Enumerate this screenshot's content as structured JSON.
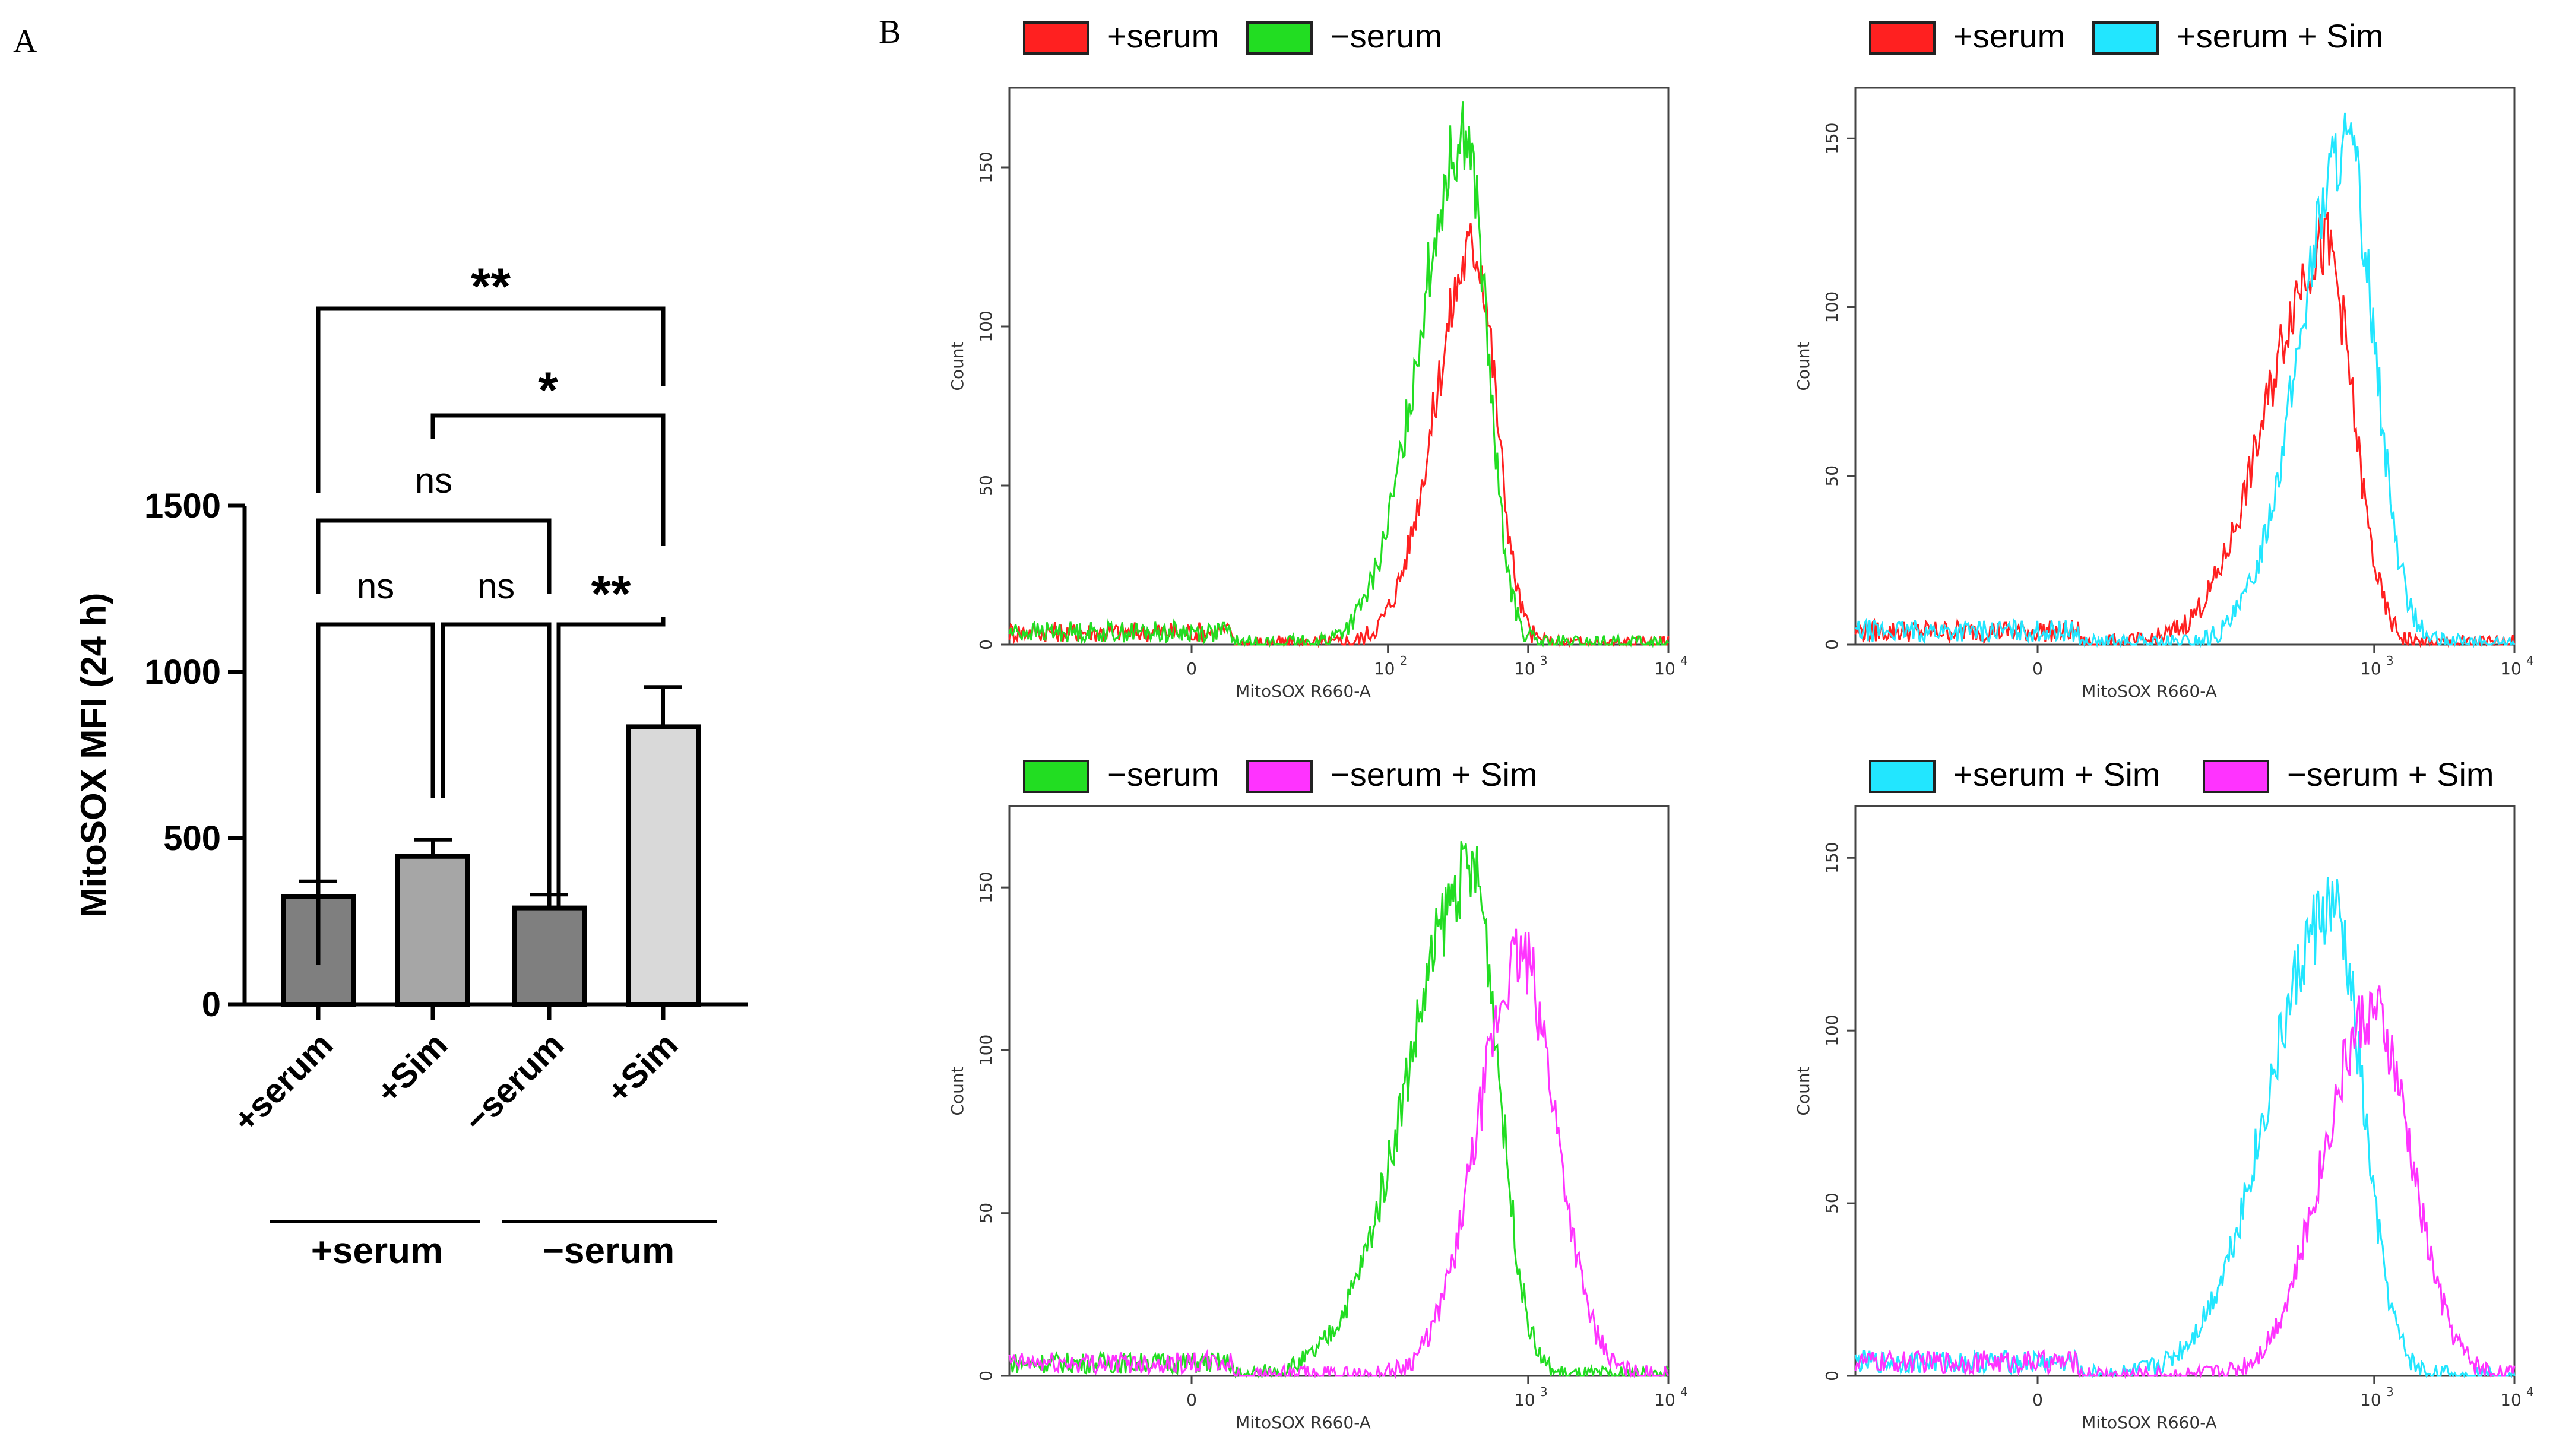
{
  "panel_labels": {
    "a": "A",
    "b": "B"
  },
  "colors": {
    "plus_serum": "#ff2020",
    "minus_serum": "#22dd22",
    "plus_serum_sim": "#22e6ff",
    "minus_serum_sim": "#ff33ff",
    "bar_dark": "#7f7f7f",
    "bar_mid": "#a6a6a6",
    "bar_light": "#d9d9d9"
  },
  "chart_data": [
    {
      "type": "bar",
      "panel": "A",
      "ylabel": "MitoSOX MFI (24 h)",
      "ylim": [
        0,
        1500
      ],
      "yticks": [
        0,
        500,
        1000,
        1500
      ],
      "categories": [
        "+serum",
        "+Sim",
        "−serum",
        "+Sim"
      ],
      "values": [
        325,
        445,
        290,
        835
      ],
      "errors": [
        45,
        50,
        40,
        120
      ],
      "bar_colors": [
        "#7f7f7f",
        "#a6a6a6",
        "#7f7f7f",
        "#d9d9d9"
      ],
      "groups": [
        "+serum",
        "−serum"
      ],
      "significance": [
        {
          "from": 0,
          "to": 1,
          "label": "ns"
        },
        {
          "from": 1,
          "to": 2,
          "label": "ns"
        },
        {
          "from": 2,
          "to": 3,
          "label": "**"
        },
        {
          "from": 0,
          "to": 2,
          "label": "ns"
        },
        {
          "from": 1,
          "to": 3,
          "label": "*"
        },
        {
          "from": 0,
          "to": 3,
          "label": "**"
        }
      ]
    },
    {
      "type": "line",
      "panel": "B1",
      "legend": [
        "+serum",
        "−serum"
      ],
      "legend_colors": [
        "#ff2020",
        "#22dd22"
      ],
      "xlabel": "MitoSOX R660-A",
      "ylabel": "Count",
      "yticks": [
        0,
        50,
        100,
        150
      ],
      "ylim": [
        0,
        175
      ],
      "xticks": [
        "0",
        "10^2",
        "10^3",
        "10^4"
      ],
      "series": [
        {
          "name": "+serum",
          "color": "#ff2020",
          "peak_x": 2.62,
          "peak_y": 125,
          "width": 0.24,
          "skew": 0.85
        },
        {
          "name": "−serum",
          "color": "#22dd22",
          "peak_x": 2.55,
          "peak_y": 160,
          "width": 0.26,
          "skew": 0.8
        }
      ]
    },
    {
      "type": "line",
      "panel": "B2",
      "legend": [
        "+serum",
        "+serum + Sim"
      ],
      "legend_colors": [
        "#ff2020",
        "#22e6ff"
      ],
      "xlabel": "MitoSOX R660-A",
      "ylabel": "Count",
      "yticks": [
        0,
        50,
        100,
        150
      ],
      "ylim": [
        0,
        165
      ],
      "xticks": [
        "0",
        "10^3",
        "10^4"
      ],
      "series": [
        {
          "name": "+serum",
          "color": "#ff2020",
          "peak_x": 2.65,
          "peak_y": 118,
          "width": 0.33,
          "skew": 0.8
        },
        {
          "name": "+serum + Sim",
          "color": "#22e6ff",
          "peak_x": 2.8,
          "peak_y": 148,
          "width": 0.3,
          "skew": 0.9
        }
      ]
    },
    {
      "type": "line",
      "panel": "B3",
      "legend": [
        "−serum",
        "−serum + Sim"
      ],
      "legend_colors": [
        "#22dd22",
        "#ff33ff"
      ],
      "xlabel": "MitoSOX R660-A",
      "ylabel": "Count",
      "yticks": [
        0,
        50,
        100,
        150
      ],
      "ylim": [
        0,
        175
      ],
      "xticks": [
        "0",
        "10^3",
        "10^4"
      ],
      "series": [
        {
          "name": "−serum",
          "color": "#22dd22",
          "peak_x": 2.6,
          "peak_y": 155,
          "width": 0.34,
          "skew": 0.75
        },
        {
          "name": "−serum + Sim",
          "color": "#ff33ff",
          "peak_x": 2.95,
          "peak_y": 128,
          "width": 0.32,
          "skew": 1.05
        }
      ]
    },
    {
      "type": "line",
      "panel": "B4",
      "legend": [
        "+serum + Sim",
        "−serum + Sim"
      ],
      "legend_colors": [
        "#22e6ff",
        "#ff33ff"
      ],
      "xlabel": "MitoSOX R660-A",
      "ylabel": "Count",
      "yticks": [
        0,
        50,
        100,
        150
      ],
      "ylim": [
        0,
        165
      ],
      "xticks": [
        "0",
        "10^3",
        "10^4"
      ],
      "series": [
        {
          "name": "+serum + Sim",
          "color": "#22e6ff",
          "peak_x": 2.7,
          "peak_y": 135,
          "width": 0.36,
          "skew": 0.8
        },
        {
          "name": "−serum + Sim",
          "color": "#ff33ff",
          "peak_x": 2.98,
          "peak_y": 105,
          "width": 0.36,
          "skew": 1.05
        }
      ]
    }
  ]
}
